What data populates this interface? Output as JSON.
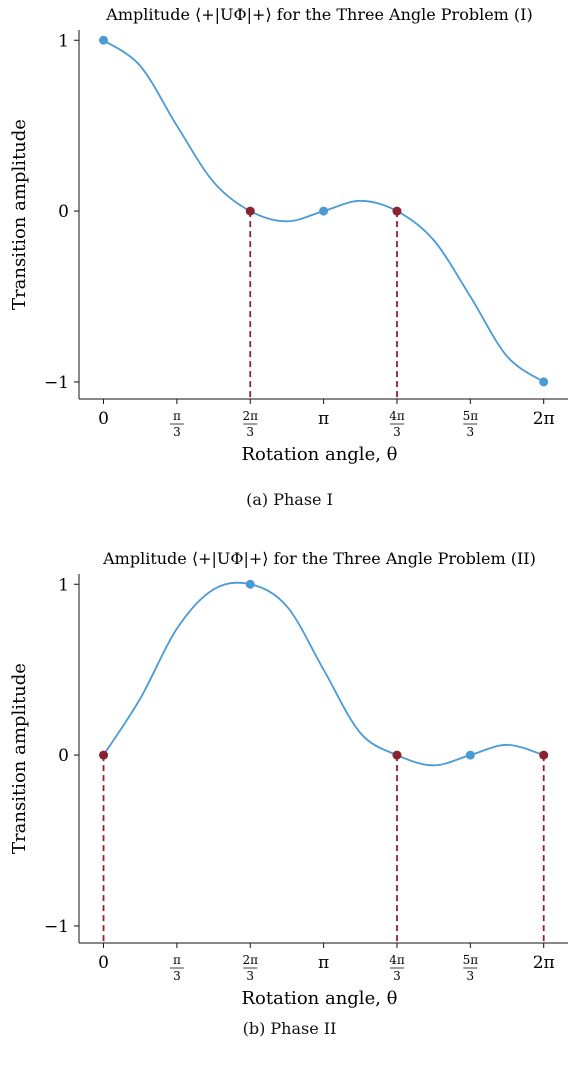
{
  "chart_data": [
    {
      "type": "line",
      "title": "Amplitude ⟨+|UΦ|+⟩ for the Three Angle Problem (I)",
      "caption": "(a) Phase I",
      "xlabel": "Rotation angle, θ",
      "ylabel": "Transition amplitude",
      "xlim": [
        -0.35,
        6.63
      ],
      "ylim": [
        -1.1,
        1.06
      ],
      "grid": false,
      "x_ticks": [
        {
          "value": 0,
          "label": "0"
        },
        {
          "value": 1.0472,
          "label": "π/3",
          "num": "π",
          "den": "3"
        },
        {
          "value": 2.0944,
          "label": "2π/3",
          "num": "2π",
          "den": "3"
        },
        {
          "value": 3.1416,
          "label": "π"
        },
        {
          "value": 4.1888,
          "label": "4π/3",
          "num": "4π",
          "den": "3"
        },
        {
          "value": 5.236,
          "label": "5π/3",
          "num": "5π",
          "den": "3"
        },
        {
          "value": 6.2832,
          "label": "2π"
        }
      ],
      "y_ticks": [
        {
          "value": -1,
          "label": "−1"
        },
        {
          "value": 0,
          "label": "0"
        },
        {
          "value": 1,
          "label": "1"
        }
      ],
      "curve": {
        "color": "#4a9bd4",
        "x": [
          0,
          0.5236,
          1.0472,
          1.5708,
          2.0944,
          2.618,
          3.1416,
          3.6652,
          4.1888,
          4.7124,
          5.236,
          5.7596,
          6.2832
        ],
        "y": [
          1.0,
          0.85,
          0.5,
          0.17,
          0.0,
          -0.06,
          0.0,
          0.06,
          0.0,
          -0.17,
          -0.5,
          -0.85,
          -1.0
        ]
      },
      "blue_points": {
        "color": "#4a9bd4",
        "x": [
          0,
          3.1416,
          6.2832
        ],
        "y": [
          1,
          0,
          -1
        ]
      },
      "red_points": {
        "color": "#8b2332",
        "x": [
          2.0944,
          4.1888
        ],
        "y": [
          0,
          0
        ]
      }
    },
    {
      "type": "line",
      "title": "Amplitude ⟨+|UΦ|+⟩ for the Three Angle Problem (II)",
      "caption": "(b) Phase II",
      "xlabel": "Rotation angle, θ",
      "ylabel": "Transition amplitude",
      "xlim": [
        -0.35,
        6.63
      ],
      "ylim": [
        -1.1,
        1.06
      ],
      "grid": false,
      "x_ticks": [
        {
          "value": 0,
          "label": "0"
        },
        {
          "value": 1.0472,
          "label": "π/3",
          "num": "π",
          "den": "3"
        },
        {
          "value": 2.0944,
          "label": "2π/3",
          "num": "2π",
          "den": "3"
        },
        {
          "value": 3.1416,
          "label": "π"
        },
        {
          "value": 4.1888,
          "label": "4π/3",
          "num": "4π",
          "den": "3"
        },
        {
          "value": 5.236,
          "label": "5π/3",
          "num": "5π",
          "den": "3"
        },
        {
          "value": 6.2832,
          "label": "2π"
        }
      ],
      "y_ticks": [
        {
          "value": -1,
          "label": "−1"
        },
        {
          "value": 0,
          "label": "0"
        },
        {
          "value": 1,
          "label": "1"
        }
      ],
      "curve": {
        "color": "#4a9bd4",
        "x": [
          0,
          0.5236,
          1.0472,
          1.5708,
          2.0944,
          2.618,
          3.1416,
          3.6652,
          4.1888,
          4.7124,
          5.236,
          5.7596,
          6.2832
        ],
        "y": [
          0.0,
          0.33,
          0.74,
          0.97,
          1.0,
          0.87,
          0.5,
          0.13,
          0.0,
          -0.06,
          0.0,
          0.06,
          0.0
        ]
      },
      "blue_points": {
        "color": "#4a9bd4",
        "x": [
          2.0944,
          5.236
        ],
        "y": [
          1,
          0
        ]
      },
      "red_points": {
        "color": "#8b2332",
        "x": [
          0,
          4.1888,
          6.2832
        ],
        "y": [
          0,
          0,
          0
        ]
      }
    }
  ]
}
